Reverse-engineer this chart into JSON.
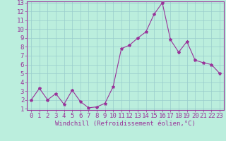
{
  "x": [
    0,
    1,
    2,
    3,
    4,
    5,
    6,
    7,
    8,
    9,
    10,
    11,
    12,
    13,
    14,
    15,
    16,
    17,
    18,
    19,
    20,
    21,
    22,
    23
  ],
  "y": [
    2,
    3.3,
    2,
    2.7,
    1.5,
    3.1,
    1.8,
    1.1,
    1.2,
    1.6,
    3.5,
    7.8,
    8.2,
    9.0,
    9.7,
    11.7,
    13.0,
    8.8,
    7.4,
    8.6,
    6.5,
    6.2,
    6.0,
    5.0
  ],
  "line_color": "#993399",
  "marker": "*",
  "marker_size": 3,
  "bg_color": "#bbeedd",
  "grid_color": "#99cccc",
  "xlabel": "Windchill (Refroidissement éolien,°C)",
  "xlabel_color": "#993399",
  "tick_color": "#993399",
  "ylim": [
    1,
    13
  ],
  "xlim": [
    -0.5,
    23.5
  ],
  "yticks": [
    1,
    2,
    3,
    4,
    5,
    6,
    7,
    8,
    9,
    10,
    11,
    12,
    13
  ],
  "xticks": [
    0,
    1,
    2,
    3,
    4,
    5,
    6,
    7,
    8,
    9,
    10,
    11,
    12,
    13,
    14,
    15,
    16,
    17,
    18,
    19,
    20,
    21,
    22,
    23
  ],
  "spine_color": "#993399",
  "font_size": 6.5,
  "xlabel_fontsize": 6.5
}
